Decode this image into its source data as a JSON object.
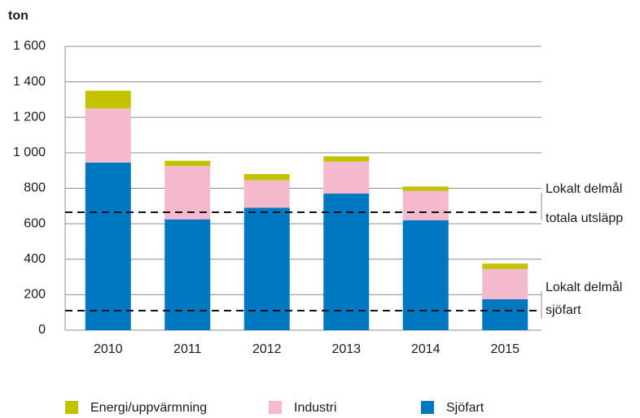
{
  "chart_data": {
    "type": "stacked_bar",
    "y_label": "ton",
    "categories": [
      "2010",
      "2011",
      "2012",
      "2013",
      "2014",
      "2015"
    ],
    "series": [
      {
        "name": "Energi/uppvärmning",
        "color": "#c3c200",
        "values": [
          100,
          30,
          35,
          30,
          25,
          30
        ]
      },
      {
        "name": "Industri",
        "color": "#f5b9cd",
        "values": [
          305,
          300,
          155,
          180,
          165,
          170
        ]
      },
      {
        "name": "Sjöfart",
        "color": "#0077c1",
        "values": [
          945,
          625,
          690,
          770,
          620,
          175
        ]
      }
    ],
    "ylim": [
      0,
      1600
    ],
    "yticks": [
      0,
      200,
      400,
      600,
      800,
      {
        "value": 1000,
        "label": "1 000"
      },
      {
        "value": 1200,
        "label": "1 200"
      },
      {
        "value": 1400,
        "label": "1 400"
      },
      {
        "value": 1600,
        "label": "1 600"
      }
    ],
    "grid": true,
    "reference_lines": [
      {
        "value": 665,
        "label": [
          "Lokalt delmål",
          "totala utsläpp"
        ]
      },
      {
        "value": 110,
        "label": [
          "Lokalt delmål",
          "sjöfart"
        ]
      }
    ],
    "legend": "bottom"
  }
}
